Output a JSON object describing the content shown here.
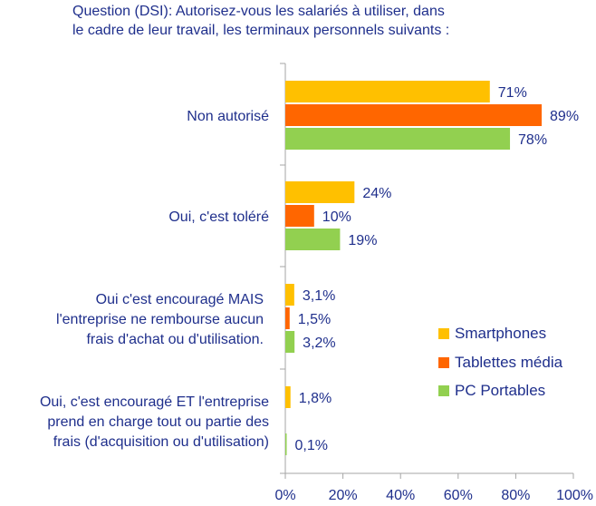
{
  "chart_data": {
    "type": "bar",
    "orientation": "horizontal",
    "title": "Question (DSI): Autorisez-vous les salariés à utiliser, dans le cadre de leur travail, les terminaux personnels suivants :",
    "title_lines": [
      "Question (DSI): Autorisez-vous les salariés à utiliser, dans",
      "le cadre de leur travail, les terminaux personnels suivants :"
    ],
    "categories": [
      "Non autorisé",
      "Oui, c'est toléré",
      "Oui c'est encouragé MAIS l'entreprise ne rembourse aucun frais d'achat ou d'utilisation.",
      "Oui, c'est encouragé ET l'entreprise prend en charge tout ou partie des frais (d'acquisition ou d'utilisation)"
    ],
    "category_lines": [
      [
        "Non autorisé"
      ],
      [
        "Oui, c'est toléré"
      ],
      [
        "Oui c'est encouragé MAIS",
        "l'entreprise ne rembourse aucun",
        "frais d'achat ou d'utilisation."
      ],
      [
        "Oui, c'est encouragé ET l'entreprise",
        "prend en charge tout ou partie des",
        "frais (d'acquisition ou d'utilisation)"
      ]
    ],
    "series": [
      {
        "name": "Smartphones",
        "color": "#ffc000",
        "values": [
          71,
          24,
          3.1,
          1.8
        ],
        "labels": [
          "71%",
          "24%",
          "3,1%",
          "1,8%"
        ]
      },
      {
        "name": "Tablettes média",
        "color": "#ff6600",
        "values": [
          89,
          10,
          1.5,
          0
        ],
        "labels": [
          "89%",
          "10%",
          "1,5%",
          ""
        ]
      },
      {
        "name": "PC Portables",
        "color": "#92d050",
        "values": [
          78,
          19,
          3.2,
          0.1
        ],
        "labels": [
          "78%",
          "19%",
          "3,2%",
          "0,1%"
        ]
      }
    ],
    "xlim": [
      0,
      100
    ],
    "xticks": [
      "0%",
      "20%",
      "40%",
      "60%",
      "80%",
      "100%"
    ],
    "grid": false,
    "legend_position": "right"
  }
}
